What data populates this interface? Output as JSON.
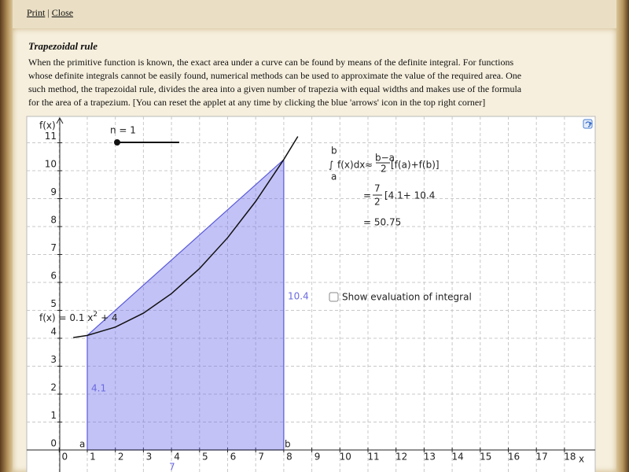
{
  "nav": {
    "links": [
      "Print",
      "Close"
    ],
    "separator": "|"
  },
  "heading": "Trapezoidal rule",
  "paragraph": [
    "When the primitive function is known, the exact area under a curve can be found by means of the definite integral. For functions",
    "whose definite integrals cannot be easily found, numerical methods can be used to approximate the value of the required area. One",
    "such method, the trapezoidal rule, divides the area into a given number of trapezia with equal widths and makes use of the formula",
    "for the area of a trapezium. [You can reset the applet at any time by clicking the blue 'arrows' icon in the top right corner]"
  ],
  "applet": {
    "slider_label": "n = 1",
    "function_label": {
      "main": "f(x) = 0.1 x",
      "power": "2",
      "rest": "+ 4"
    },
    "y_axis_label": "f(x)",
    "x_axis_label": "x",
    "point_labels": {
      "a": "a",
      "b": "b"
    },
    "height_labels": {
      "left": "4.1",
      "right": "10.4"
    },
    "width_label": "7",
    "formula": {
      "upper": "b",
      "lower": "a",
      "integral": "∫",
      "integrand": "f(x)dx",
      "approx": "≈",
      "frac_num": "b−a",
      "frac_den": "2",
      "bracket": "[f(a)+f(b)]",
      "line2_eq": "=",
      "line2_num": "7",
      "line2_den": "2",
      "line2_bracket": "[4.1+ 10.4",
      "line3": "= 50.75"
    },
    "checkbox_label": "Show evaluation of integral",
    "xticks": [
      0,
      1,
      2,
      3,
      4,
      5,
      6,
      7,
      8,
      9,
      10,
      11,
      12,
      13,
      14,
      15,
      16,
      17,
      18
    ],
    "yticks": [
      0,
      1,
      2,
      3,
      4,
      5,
      6,
      7,
      8,
      9,
      10,
      11
    ]
  }
}
